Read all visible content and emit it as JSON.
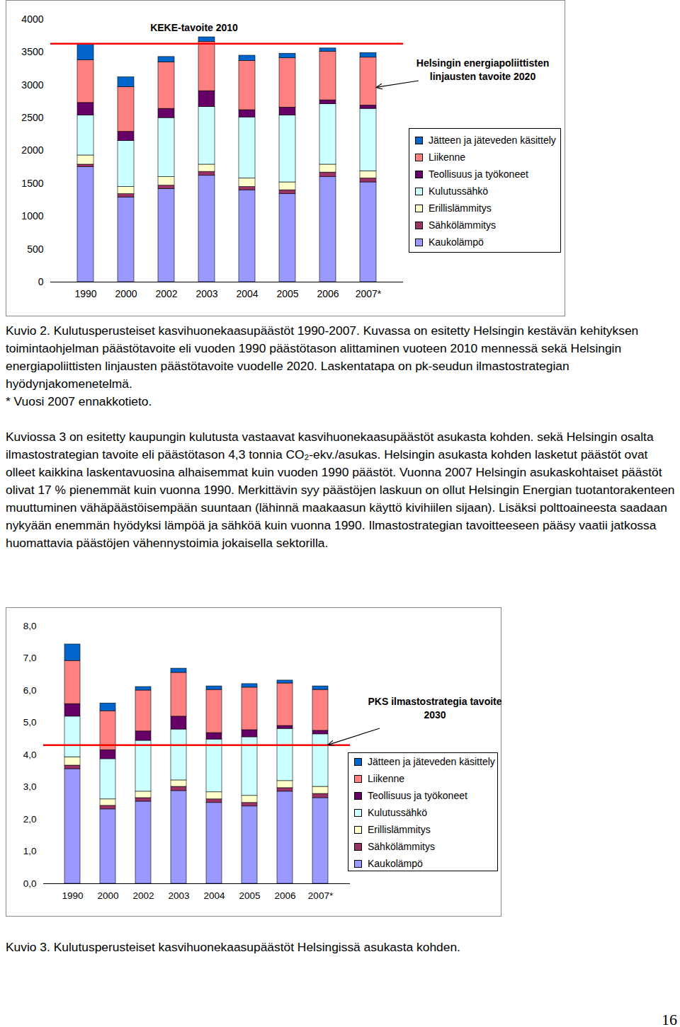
{
  "chart_data": [
    {
      "type": "bar",
      "stacked": true,
      "legend": "right",
      "categories": [
        "1990",
        "2000",
        "2002",
        "2003",
        "2004",
        "2005",
        "2006",
        "2007*"
      ],
      "series": [
        {
          "name": "Jätteen ja jäteveden käsittely",
          "color": "#0066cc",
          "values": [
            250,
            150,
            80,
            70,
            80,
            70,
            50,
            70
          ]
        },
        {
          "name": "Liikenne",
          "color": "#ff8080",
          "values": [
            650,
            680,
            710,
            750,
            750,
            750,
            740,
            730
          ]
        },
        {
          "name": "Teollisuus ja työkoneet",
          "color": "#660066",
          "values": [
            190,
            140,
            140,
            240,
            110,
            120,
            60,
            50
          ]
        },
        {
          "name": "Kulutussähkö",
          "color": "#ccffff",
          "values": [
            610,
            700,
            900,
            880,
            930,
            1020,
            920,
            950
          ]
        },
        {
          "name": "Erillislämmitys",
          "color": "#ffffcc",
          "values": [
            140,
            110,
            130,
            110,
            130,
            120,
            120,
            110
          ]
        },
        {
          "name": "Sähkölämmitys",
          "color": "#993366",
          "values": [
            40,
            50,
            50,
            60,
            50,
            60,
            70,
            60
          ]
        },
        {
          "name": "Kaukolämpö",
          "color": "#9999ff",
          "values": [
            1750,
            1290,
            1420,
            1620,
            1400,
            1340,
            1600,
            1520
          ]
        }
      ],
      "ylim": [
        0,
        4000
      ],
      "yticks": [
        0,
        500,
        1000,
        1500,
        2000,
        2500,
        3000,
        3500,
        4000
      ],
      "grid": false,
      "annotations": [
        {
          "text": "KEKE-tavoite 2010",
          "value": 3630,
          "line_style": "solid"
        },
        {
          "text": "Helsingin energiapoliittisten linjausten tavoite 2020",
          "value": 2960,
          "marker": "arrow"
        }
      ]
    },
    {
      "type": "bar",
      "stacked": true,
      "legend": "right",
      "categories": [
        "1990",
        "2000",
        "2002",
        "2003",
        "2004",
        "2005",
        "2006",
        "2007*"
      ],
      "series": [
        {
          "name": "Jätteen ja jäteveden käsittely",
          "color": "#0066cc",
          "values": [
            0.51,
            0.24,
            0.11,
            0.13,
            0.11,
            0.11,
            0.09,
            0.11
          ]
        },
        {
          "name": "Liikenne",
          "color": "#ff8080",
          "values": [
            1.34,
            1.21,
            1.27,
            1.36,
            1.34,
            1.32,
            1.32,
            1.27
          ]
        },
        {
          "name": "Teollisuus ja työkoneet",
          "color": "#660066",
          "values": [
            0.39,
            0.28,
            0.29,
            0.4,
            0.2,
            0.22,
            0.09,
            0.11
          ]
        },
        {
          "name": "Kulutussähkö",
          "color": "#ccffff",
          "values": [
            1.26,
            1.25,
            1.58,
            1.58,
            1.64,
            1.82,
            1.62,
            1.63
          ]
        },
        {
          "name": "Erillislämmitys",
          "color": "#ffffcc",
          "values": [
            0.26,
            0.2,
            0.2,
            0.2,
            0.22,
            0.22,
            0.22,
            0.22
          ]
        },
        {
          "name": "Sähkölämmitys",
          "color": "#993366",
          "values": [
            0.11,
            0.11,
            0.11,
            0.13,
            0.11,
            0.11,
            0.11,
            0.13
          ]
        },
        {
          "name": "Kaukolämpö",
          "color": "#9999ff",
          "values": [
            3.56,
            2.31,
            2.55,
            2.88,
            2.51,
            2.4,
            2.86,
            2.66
          ]
        }
      ],
      "ylim": [
        0,
        8
      ],
      "yticks": [
        {
          "value": 0,
          "label": "0,0"
        },
        {
          "value": 1,
          "label": "1,0"
        },
        {
          "value": 2,
          "label": "2,0"
        },
        {
          "value": 3,
          "label": "3,0"
        },
        {
          "value": 4,
          "label": "4,0"
        },
        {
          "value": 5,
          "label": "5,0"
        },
        {
          "value": 6,
          "label": "6,0"
        },
        {
          "value": 7,
          "label": "7,0"
        },
        {
          "value": 8,
          "label": "8,0"
        }
      ],
      "grid": false,
      "annotations": [
        {
          "text": "PKS ilmastostrategia tavoite 2030",
          "value": 4.3,
          "line_style": "solid",
          "marker": "arrow"
        }
      ]
    }
  ],
  "document": {
    "caption_2": "Kuvio 2. Kulutusperusteiset kasvihuonekaasupäästöt 1990-2007. Kuvassa on esitetty Helsingin kestävän kehityksen toimintaohjelman päästötavoite eli vuoden 1990 päästötason alittaminen vuoteen 2010 mennessä sekä Helsingin energiapoliittisten linjausten päästötavoite vuodelle 2020. Laskentatapa on pk-seudun ilmastostrategian hyödynjakomenetelmä.",
    "note_2": "* Vuosi 2007 ennakkotieto.",
    "paragraph": "Kuviossa 3 on esitetty kaupungin kulutusta vastaavat kasvihuonekaasupäästöt asukasta kohden. sekä Helsingin osalta ilmastostrategian tavoite eli päästötason 4,3 tonnia CO₂-ekv./asukas. Helsingin asukasta kohden lasketut päästöt ovat olleet kaikkina laskentavuosina alhaisemmat kuin vuoden 1990 päästöt. Vuonna 2007 Helsingin asukaskohtaiset päästöt olivat 17 % pienemmät kuin vuonna 1990. Merkittävin syy päästöjen laskuun on ollut Helsingin Energian tuotantorakenteen muuttuminen vähäpäästöisempään suuntaan (lähinnä maakaasun käyttö kivihiilen sijaan). Lisäksi polttoaineesta saadaan nykyään enemmän hyödyksi lämpöä ja sähköä kuin vuonna 1990. Ilmastostrategian tavoitteeseen pääsy vaatii jatkossa huomattavia päästöjen vähennystoimia jokaisella sektorilla.",
    "caption_3": "Kuvio 3. Kulutusperusteiset kasvihuonekaasupäästöt Helsingissä asukasta kohden.",
    "page_number": "16"
  }
}
